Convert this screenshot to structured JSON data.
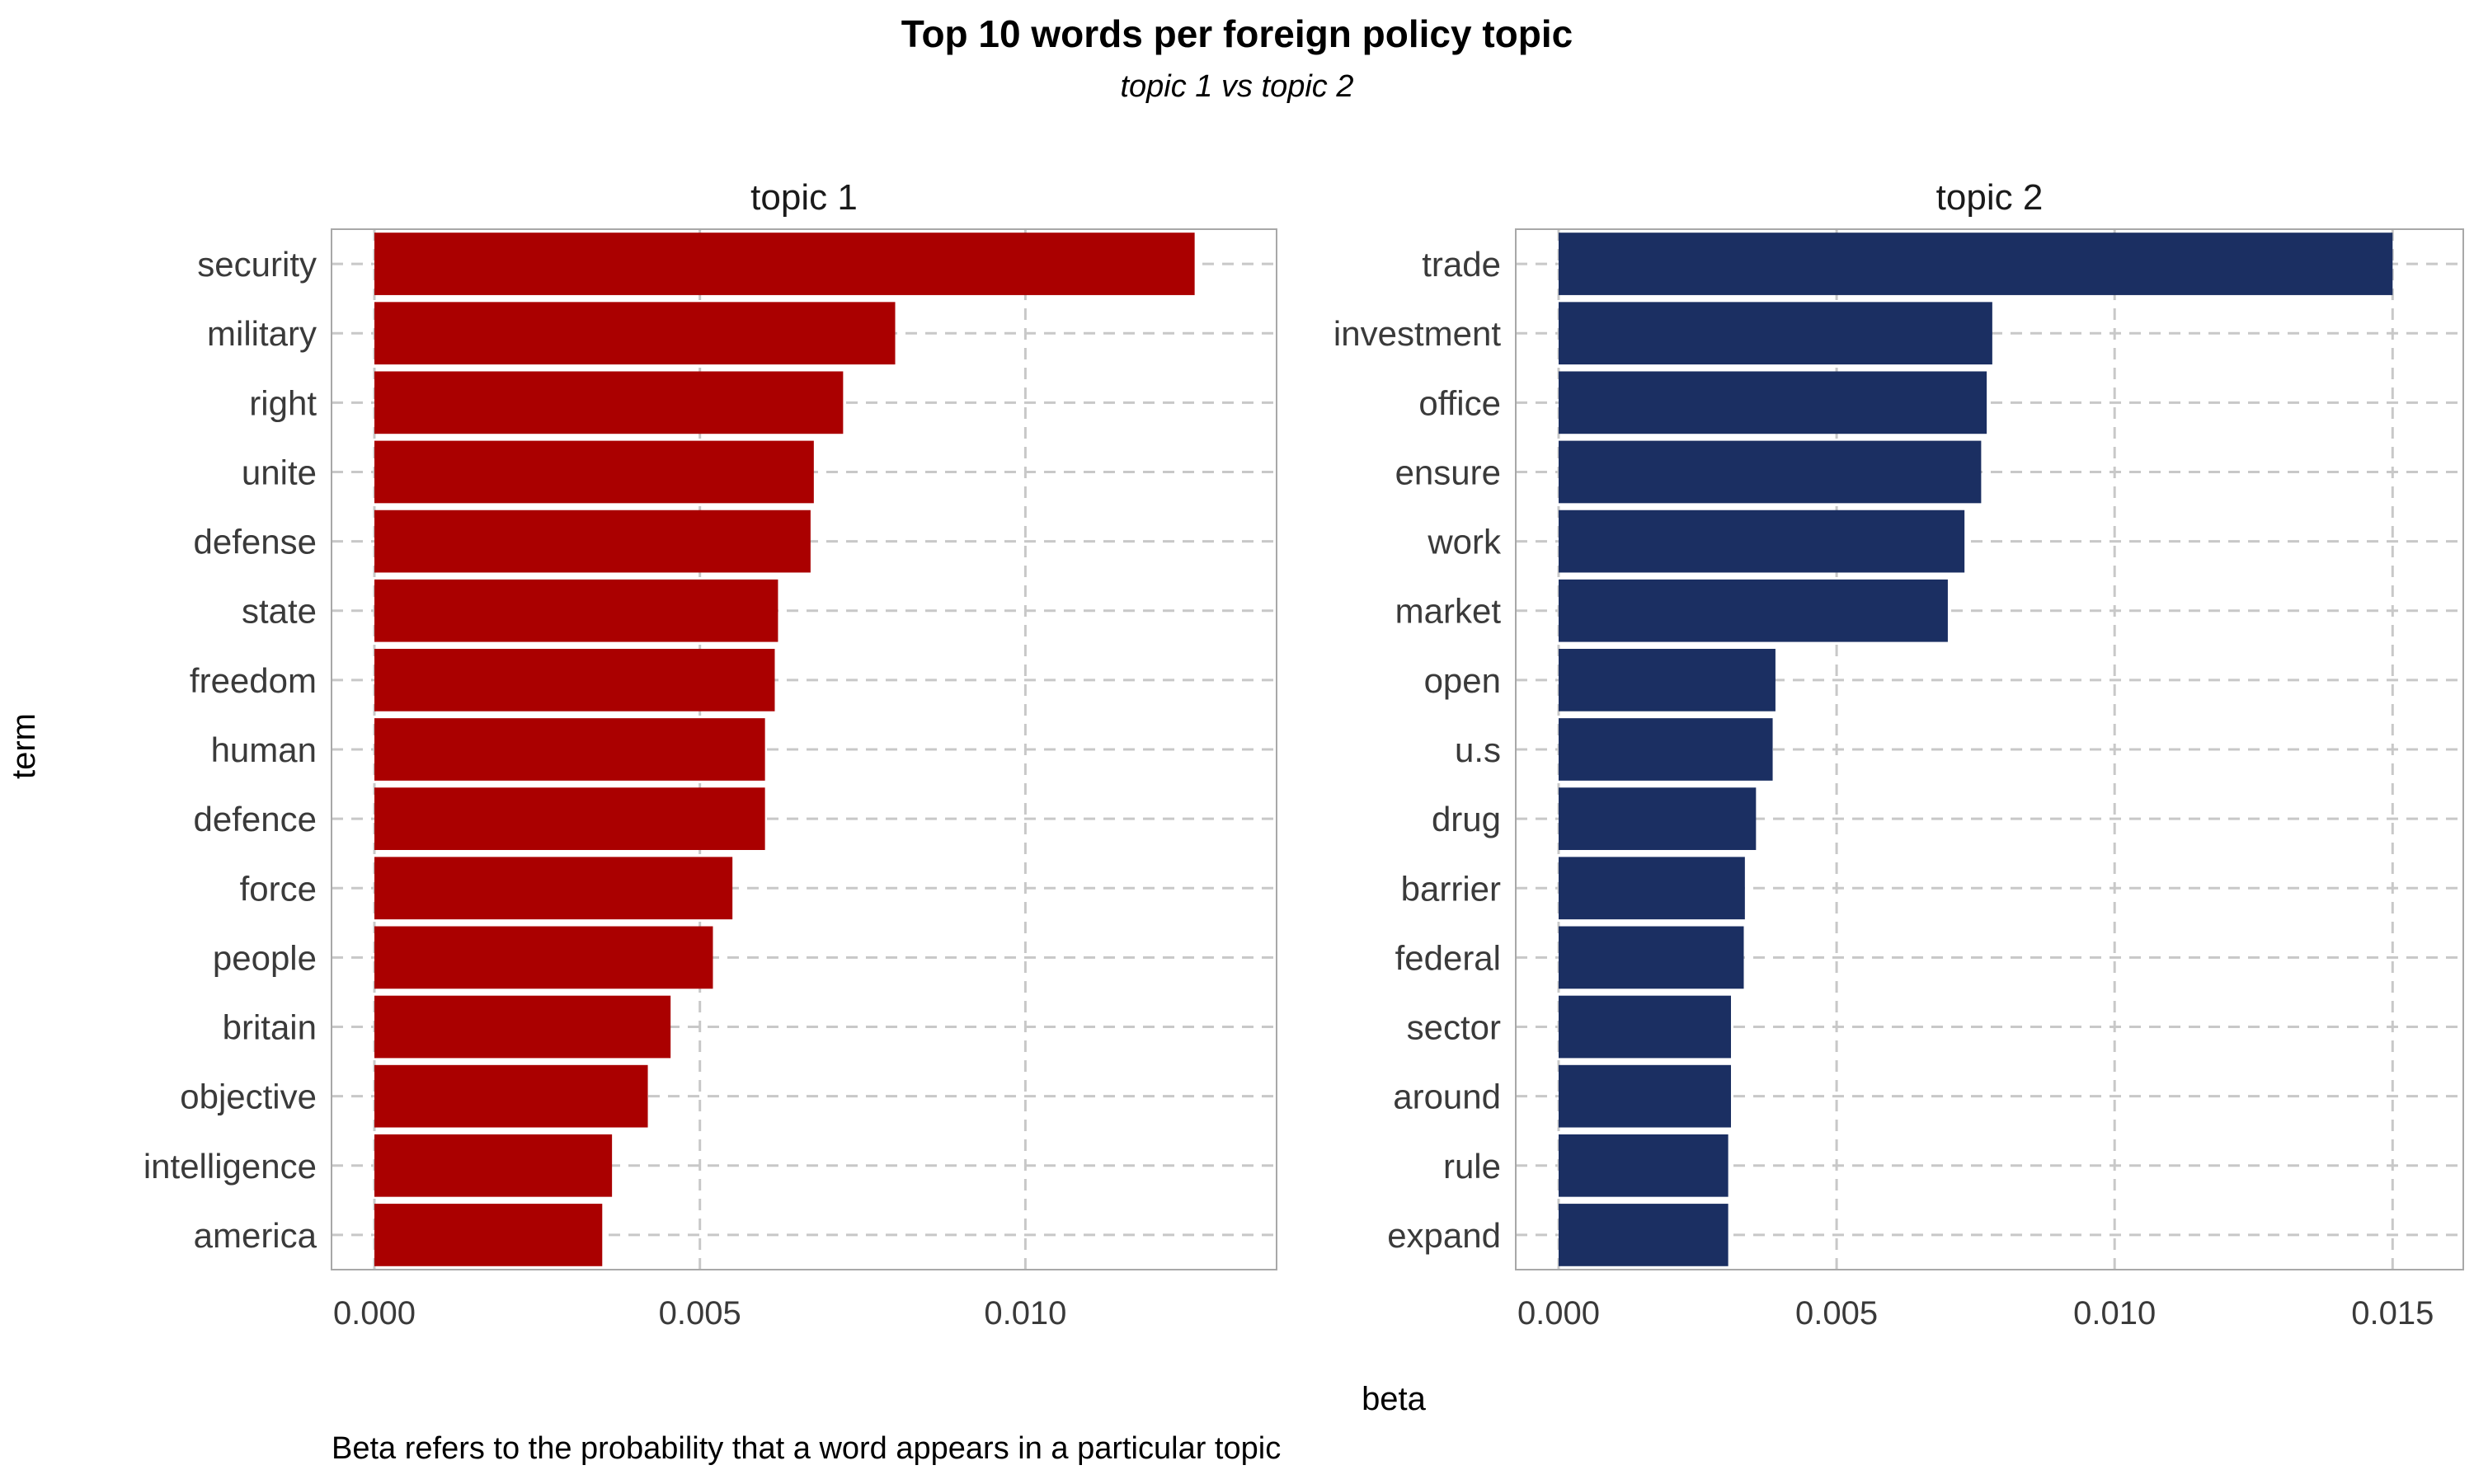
{
  "title": "Top 10 words per foreign policy topic",
  "subtitle": "topic 1 vs topic 2",
  "caption": "Beta refers to the probability that a word appears in a particular topic",
  "chart_data": {
    "type": "bar",
    "orientation": "horizontal",
    "xlabel": "beta",
    "ylabel": "term",
    "grid": true,
    "panels": [
      {
        "name": "topic 1",
        "color": "#AA0000",
        "xlim": [
          0,
          0.0132
        ],
        "xticks": [
          "0.000",
          "0.005",
          "0.010"
        ],
        "tick_values": [
          0,
          0.005,
          0.01
        ],
        "categories": [
          "security",
          "military",
          "right",
          "unite",
          "defense",
          "state",
          "freedom",
          "human",
          "defence",
          "force",
          "people",
          "britain",
          "objective",
          "intelligence",
          "america"
        ],
        "values": [
          0.0126,
          0.008,
          0.0072,
          0.00675,
          0.0067,
          0.0062,
          0.00615,
          0.006,
          0.006,
          0.0055,
          0.0052,
          0.00455,
          0.0042,
          0.00365,
          0.0035
        ]
      },
      {
        "name": "topic 2",
        "color": "#1B2F62",
        "xlim": [
          0,
          0.0155
        ],
        "xticks": [
          "0.000",
          "0.005",
          "0.010",
          "0.015"
        ],
        "tick_values": [
          0,
          0.005,
          0.01,
          0.015
        ],
        "categories": [
          "trade",
          "investment",
          "office",
          "ensure",
          "work",
          "market",
          "open",
          "u.s",
          "drug",
          "barrier",
          "federal",
          "sector",
          "around",
          "rule",
          "expand"
        ],
        "values": [
          0.015,
          0.0078,
          0.0077,
          0.0076,
          0.0073,
          0.007,
          0.0039,
          0.00385,
          0.00355,
          0.00335,
          0.00333,
          0.0031,
          0.0031,
          0.00305,
          0.00305
        ]
      }
    ]
  }
}
